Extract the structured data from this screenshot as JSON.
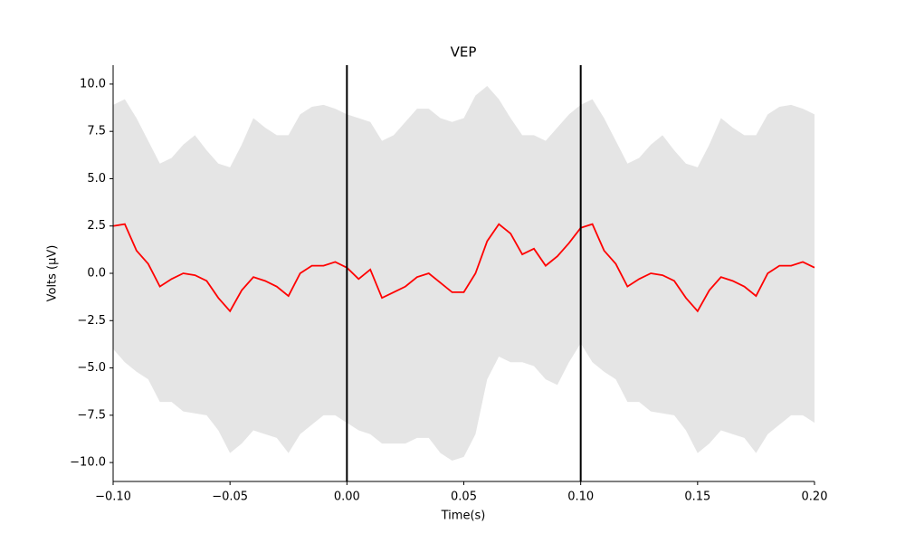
{
  "chart_data": {
    "type": "line",
    "title": "VEP",
    "xlabel": "Time(s)",
    "ylabel": "Volts (μV)",
    "x": [
      -0.1,
      -0.095,
      -0.09,
      -0.085,
      -0.08,
      -0.075,
      -0.07,
      -0.065,
      -0.06,
      -0.055,
      -0.05,
      -0.045,
      -0.04,
      -0.035,
      -0.03,
      -0.025,
      -0.02,
      -0.015,
      -0.01,
      -0.005,
      0,
      0.005,
      0.01,
      0.015,
      0.02,
      0.025,
      0.03,
      0.035,
      0.04,
      0.045,
      0.05,
      0.055,
      0.06,
      0.065,
      0.07,
      0.075,
      0.08,
      0.085,
      0.09,
      0.095,
      0.1,
      0.105,
      0.11,
      0.115,
      0.12,
      0.125,
      0.13,
      0.135,
      0.14,
      0.145,
      0.15,
      0.155,
      0.16,
      0.165,
      0.17,
      0.175,
      0.18,
      0.185,
      0.19,
      0.195,
      0.2
    ],
    "series": [
      {
        "color": "#ff0000",
        "values": [
          2.5,
          2.6,
          1.2,
          0.5,
          -0.7,
          -0.3,
          0.0,
          -0.1,
          -0.4,
          -1.3,
          -2.0,
          -0.9,
          -0.2,
          -0.4,
          -0.7,
          -1.2,
          0.0,
          0.4,
          0.4,
          0.6,
          0.3,
          -0.3,
          0.2,
          -1.3,
          -1.0,
          -0.7,
          -0.2,
          0.0,
          -0.5,
          -1.0,
          -1.0,
          0.0,
          1.7,
          2.6,
          2.1,
          1.0,
          1.3,
          0.4,
          0.9,
          1.6,
          2.4,
          2.6,
          1.2,
          0.5,
          -0.7,
          -0.3,
          0.0,
          -0.1,
          -0.4,
          -1.3,
          -2.0,
          -0.9,
          -0.2,
          -0.4,
          -0.7,
          -1.2,
          0.0,
          0.4,
          0.4,
          0.6,
          0.3
        ]
      }
    ],
    "band": {
      "color": "#e5e5e5",
      "upper": [
        8.9,
        9.2,
        8.2,
        7.0,
        5.8,
        6.1,
        6.8,
        7.3,
        6.5,
        5.8,
        5.6,
        6.8,
        8.2,
        7.7,
        7.3,
        7.3,
        8.4,
        8.8,
        8.9,
        8.7,
        8.4,
        8.2,
        8.0,
        7.0,
        7.3,
        8.0,
        8.7,
        8.7,
        8.2,
        8.0,
        8.2,
        9.4,
        9.9,
        9.2,
        8.2,
        7.3,
        7.3,
        7.0,
        7.7,
        8.4,
        8.9,
        9.2,
        8.2,
        7.0,
        5.8,
        6.1,
        6.8,
        7.3,
        6.5,
        5.8,
        5.6,
        6.8,
        8.2,
        7.7,
        7.3,
        7.3,
        8.4,
        8.8,
        8.9,
        8.7,
        8.4
      ],
      "lower": [
        -4.0,
        -4.7,
        -5.2,
        -5.6,
        -6.8,
        -6.8,
        -7.3,
        -7.4,
        -7.5,
        -8.3,
        -9.5,
        -9.0,
        -8.3,
        -8.5,
        -8.7,
        -9.5,
        -8.5,
        -8.0,
        -7.5,
        -7.5,
        -7.9,
        -8.3,
        -8.5,
        -9.0,
        -9.0,
        -9.0,
        -8.7,
        -8.7,
        -9.5,
        -9.9,
        -9.7,
        -8.5,
        -5.6,
        -4.4,
        -4.7,
        -4.7,
        -4.9,
        -5.6,
        -5.9,
        -4.7,
        -3.7,
        -4.7,
        -5.2,
        -5.6,
        -6.8,
        -6.8,
        -7.3,
        -7.4,
        -7.5,
        -8.3,
        -9.5,
        -9.0,
        -8.3,
        -8.5,
        -8.7,
        -9.5,
        -8.5,
        -8.0,
        -7.5,
        -7.5,
        -7.9
      ]
    },
    "vlines": [
      0,
      0.1
    ],
    "vline_color": "#000000",
    "xlim": [
      -0.1,
      0.2
    ],
    "ylim": [
      -11,
      11
    ],
    "xticks": [
      {
        "value": -0.1,
        "label": "−0.10"
      },
      {
        "value": -0.05,
        "label": "−0.05"
      },
      {
        "value": 0,
        "label": "0.00"
      },
      {
        "value": 0.05,
        "label": "0.05"
      },
      {
        "value": 0.1,
        "label": "0.10"
      },
      {
        "value": 0.15,
        "label": "0.15"
      },
      {
        "value": 0.2,
        "label": "0.20"
      }
    ],
    "yticks": [
      {
        "value": -10,
        "label": "−10.0"
      },
      {
        "value": -7.5,
        "label": "−7.5"
      },
      {
        "value": -5,
        "label": "−5.0"
      },
      {
        "value": -2.5,
        "label": "−2.5"
      },
      {
        "value": 0,
        "label": "0.0"
      },
      {
        "value": 2.5,
        "label": "2.5"
      },
      {
        "value": 5,
        "label": "5.0"
      },
      {
        "value": 7.5,
        "label": "7.5"
      },
      {
        "value": 10,
        "label": "10.0"
      }
    ],
    "grid": false
  }
}
